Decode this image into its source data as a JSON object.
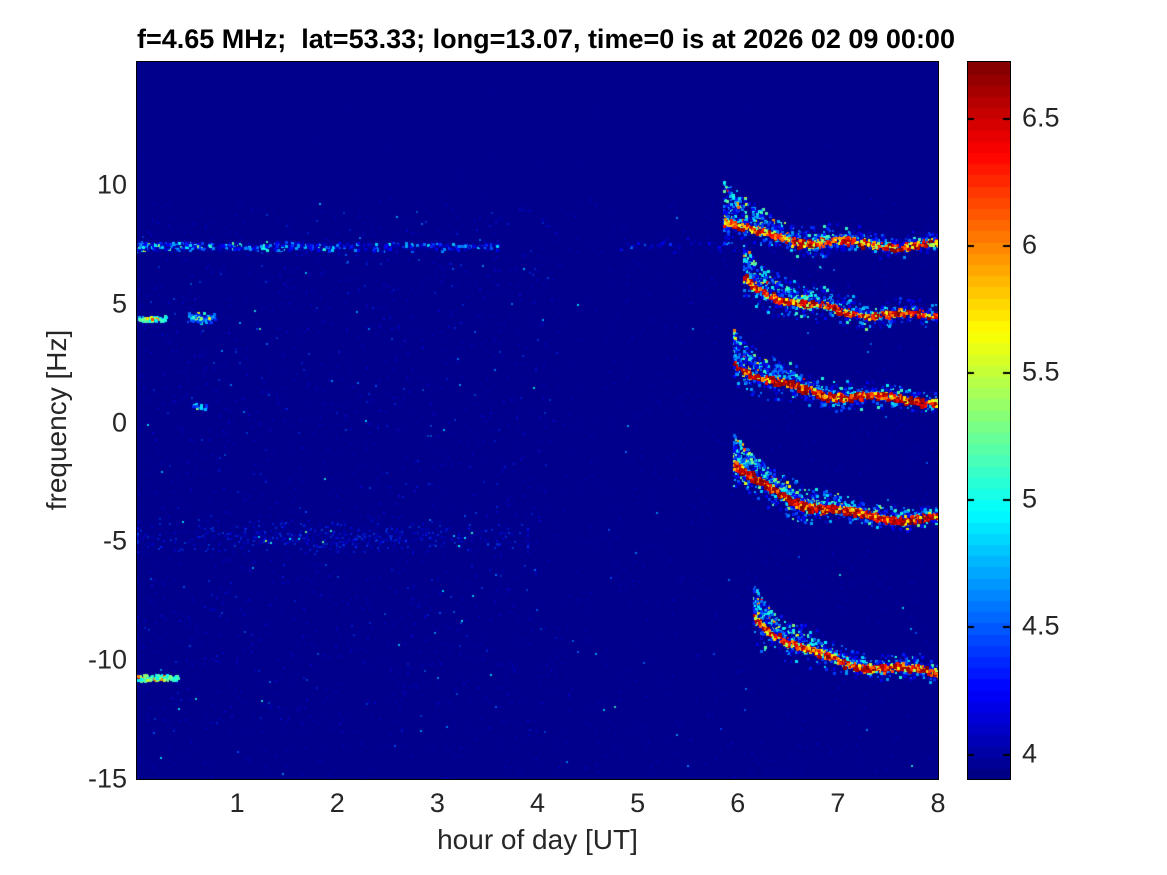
{
  "chart_data": {
    "type": "heatmap",
    "title": "f=4.65 MHz;  lat=53.33; long=13.07, time=0 is at 2026 02 09 00:00",
    "xlabel": "hour of day [UT]",
    "ylabel": "frequency [Hz]",
    "xlim": [
      0,
      8
    ],
    "ylim": [
      -15,
      15.17
    ],
    "xtick_values": [
      1,
      2,
      3,
      4,
      5,
      6,
      7,
      8
    ],
    "xtick_labels": [
      "1",
      "2",
      "3",
      "4",
      "5",
      "6",
      "7",
      "8"
    ],
    "ytick_values": [
      10,
      5,
      0,
      -5,
      -10,
      -15
    ],
    "ytick_labels": [
      "10",
      "5",
      "0",
      "-5",
      "-10",
      "-15"
    ],
    "grid": false,
    "colormap": "jet",
    "background_color": "#00008d",
    "colorbar": {
      "position": "right",
      "range": [
        3.9,
        6.72
      ],
      "steps": 64,
      "tick_values": [
        4,
        4.5,
        5,
        5.5,
        6,
        6.5
      ],
      "tick_labels": [
        "4",
        "4.5",
        "5",
        "5.5",
        "6",
        "6.5"
      ]
    },
    "seed": 42,
    "noise_layers": [
      {
        "h": [
          0,
          8
        ],
        "f": [
          -15,
          9.5
        ],
        "count": 5000,
        "v": [
          0.0,
          0.12
        ],
        "alpha": 0.45,
        "size": 2
      },
      {
        "h": [
          0,
          8
        ],
        "f": [
          -15,
          15.1
        ],
        "count": 900,
        "v": [
          0.0,
          0.08
        ],
        "alpha": 0.35,
        "size": 2
      },
      {
        "h": [
          0,
          4.2
        ],
        "f": [
          -13,
          9.0
        ],
        "count": 900,
        "v": [
          0.05,
          0.3
        ],
        "alpha": 0.5,
        "size": 2
      },
      {
        "h": [
          0,
          8
        ],
        "f": [
          -15,
          9.5
        ],
        "count": 120,
        "v": [
          0.2,
          0.5
        ],
        "alpha": 0.8,
        "size": 2
      }
    ],
    "features": [
      {
        "kind": "speckle-line",
        "name": "weak-line-7.5Hz",
        "h": [
          0.0,
          3.6
        ],
        "f": 7.45,
        "spread": 0.22,
        "count": 650,
        "v": [
          0.02,
          0.55
        ],
        "leftBias": 1.7
      },
      {
        "kind": "speckle-line",
        "name": "pre-dawn-specks",
        "h": [
          4.8,
          5.9
        ],
        "f": 7.5,
        "spread": 0.35,
        "count": 45,
        "v": [
          0.02,
          0.25
        ],
        "leftBias": 1.0
      },
      {
        "kind": "speckle-line",
        "name": "bright-dash-4.4Hz",
        "h": [
          0.0,
          0.28
        ],
        "f": 4.4,
        "spread": 0.12,
        "count": 70,
        "v": [
          0.3,
          0.95
        ],
        "leftBias": 1.0
      },
      {
        "kind": "speckle-line",
        "name": "spot-0.6h-4.4Hz",
        "h": [
          0.5,
          0.78
        ],
        "f": 4.45,
        "spread": 0.25,
        "count": 60,
        "v": [
          0.15,
          0.8
        ],
        "leftBias": 1.0
      },
      {
        "kind": "speckle-line",
        "name": "spot-0.6h-0.7Hz",
        "h": [
          0.55,
          0.7
        ],
        "f": 0.7,
        "spread": 0.15,
        "count": 18,
        "v": [
          0.15,
          0.7
        ],
        "leftBias": 1.0
      },
      {
        "kind": "speckle-line",
        "name": "bright-dash--10.7Hz",
        "h": [
          0.0,
          0.4
        ],
        "f": -10.7,
        "spread": 0.16,
        "count": 95,
        "v": [
          0.35,
          0.95
        ],
        "leftBias": 1.0
      },
      {
        "kind": "diffuse-band",
        "name": "faint-band--5Hz",
        "h": [
          0.0,
          3.9
        ],
        "f": -4.8,
        "spread": 0.75,
        "count": 550,
        "v": [
          0.02,
          0.22
        ],
        "alpha": 0.55
      },
      {
        "kind": "plume",
        "name": "sunrise-trace-1",
        "h0": 5.85,
        "hEnd": 8,
        "fStart": 8.6,
        "fEnd": 7.5,
        "k": 2.2,
        "rise": 1.9,
        "coreCount": 420,
        "coreV": [
          0.45,
          0.95
        ],
        "darkFrac": 0.12,
        "haloCount": 520,
        "haloV": [
          0.06,
          0.5
        ],
        "burstCount": 260
      },
      {
        "kind": "plume",
        "name": "sunrise-trace-2",
        "h0": 6.05,
        "hEnd": 8,
        "fStart": 6.1,
        "fEnd": 4.45,
        "k": 1.8,
        "rise": 1.3,
        "coreCount": 400,
        "coreV": [
          0.5,
          0.97
        ],
        "darkFrac": 0.14,
        "haloCount": 480,
        "haloV": [
          0.06,
          0.55
        ],
        "burstCount": 260
      },
      {
        "kind": "plume",
        "name": "sunrise-trace-3",
        "h0": 5.95,
        "hEnd": 8,
        "fStart": 2.6,
        "fEnd": 0.95,
        "k": 1.8,
        "rise": 1.4,
        "coreCount": 450,
        "coreV": [
          0.5,
          1.0
        ],
        "darkFrac": 0.18,
        "haloCount": 520,
        "haloV": [
          0.07,
          0.55
        ],
        "burstCount": 280
      },
      {
        "kind": "plume",
        "name": "sunrise-trace-4",
        "h0": 5.95,
        "hEnd": 8,
        "fStart": -1.7,
        "fEnd": -4.15,
        "k": 1.6,
        "rise": 1.2,
        "coreCount": 620,
        "coreV": [
          0.55,
          1.0
        ],
        "darkFrac": 0.25,
        "haloCount": 700,
        "haloV": [
          0.08,
          0.68
        ],
        "burstCount": 380
      },
      {
        "kind": "plume",
        "name": "sunrise-trace-5",
        "h0": 6.15,
        "hEnd": 8,
        "fStart": -8.1,
        "fEnd": -10.55,
        "k": 1.7,
        "rise": 1.3,
        "coreCount": 420,
        "coreV": [
          0.45,
          0.97
        ],
        "darkFrac": 0.14,
        "haloCount": 500,
        "haloV": [
          0.06,
          0.55
        ],
        "burstCount": 280
      }
    ]
  }
}
